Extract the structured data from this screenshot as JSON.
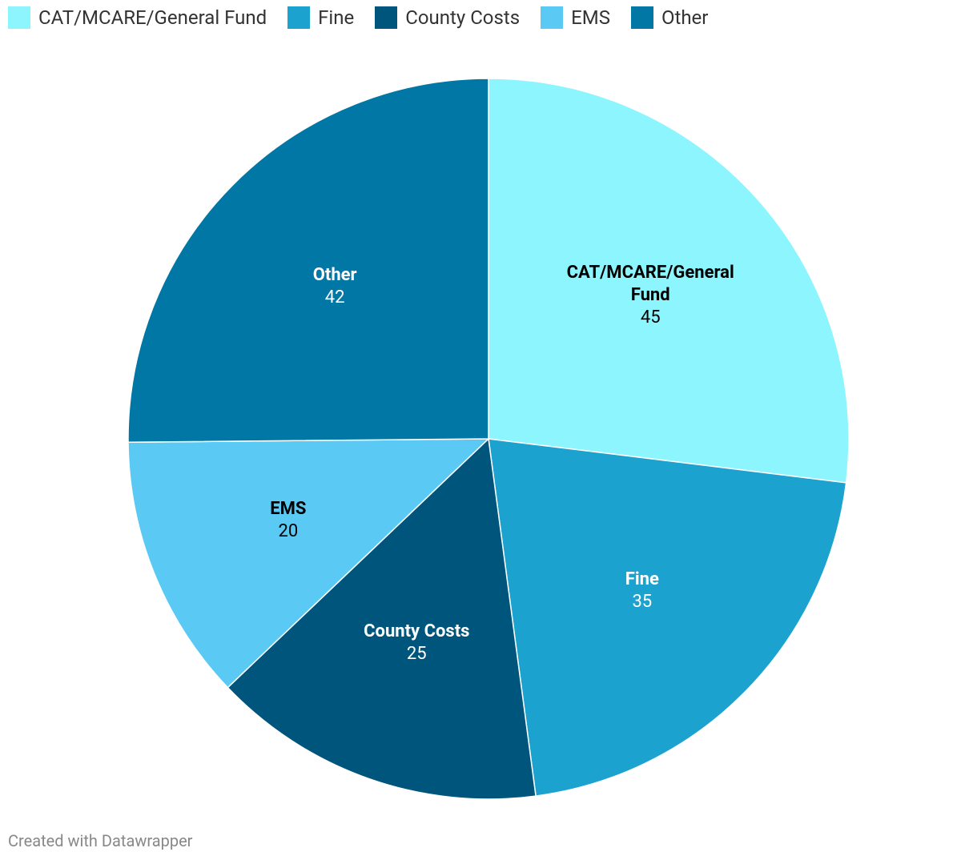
{
  "chart_data": {
    "type": "pie",
    "categories": [
      "CAT/MCARE/General Fund",
      "Fine",
      "County Costs",
      "EMS",
      "Other"
    ],
    "values": [
      45,
      35,
      25,
      20,
      42
    ],
    "colors": [
      "#8cf5fe",
      "#1ba2cf",
      "#00557c",
      "#5acaf5",
      "#0077a4"
    ],
    "legend": "top-left",
    "credit": "Created with Datawrapper"
  }
}
